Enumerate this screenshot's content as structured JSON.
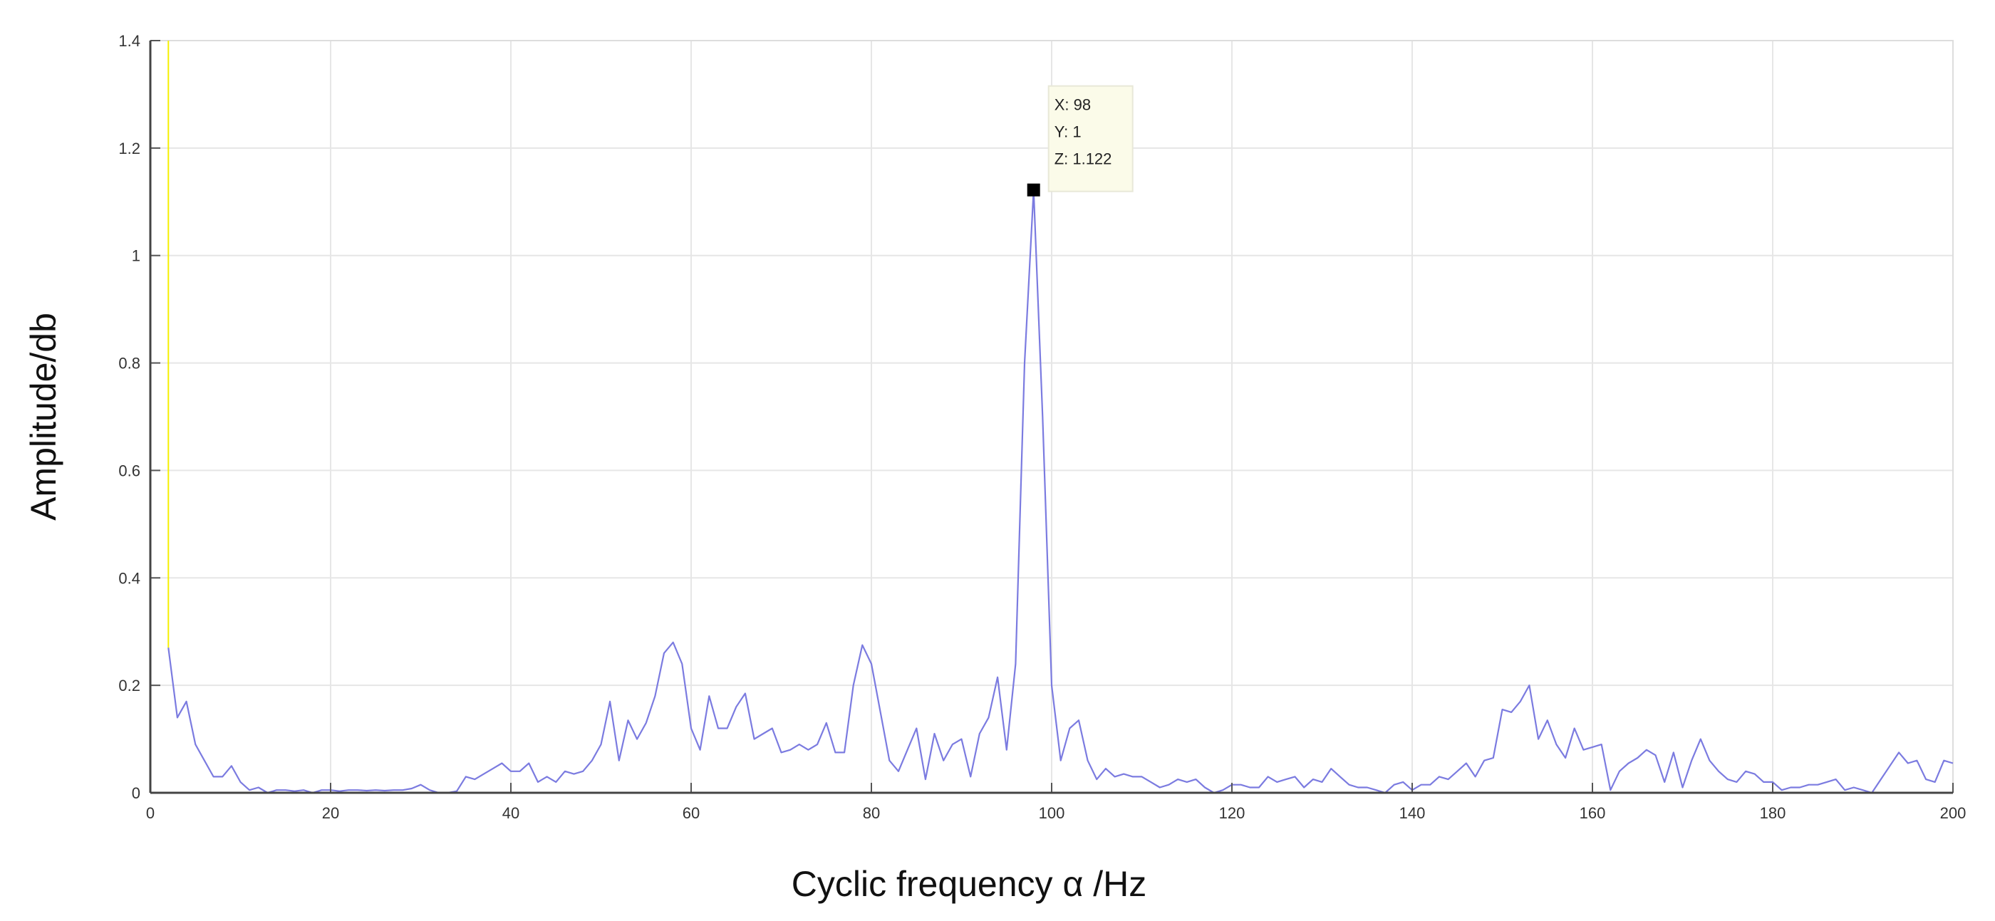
{
  "chart_data": {
    "type": "line",
    "title": "",
    "xlabel": "Cyclic frequency  α /Hz",
    "ylabel": "Amplitude/db",
    "xlim": [
      0,
      200
    ],
    "ylim": [
      0,
      1.4
    ],
    "xticks": [
      0,
      20,
      40,
      60,
      80,
      100,
      120,
      140,
      160,
      180,
      200
    ],
    "yticks": [
      0,
      0.2,
      0.4,
      0.6,
      0.8,
      1,
      1.2,
      1.4
    ],
    "xtick_labels": [
      "0",
      "20",
      "40",
      "60",
      "80",
      "100",
      "120",
      "140",
      "160",
      "180",
      "200"
    ],
    "ytick_labels": [
      "0",
      "0.2",
      "0.4",
      "0.6",
      "0.8",
      "1",
      "1.2",
      "1.4"
    ],
    "grid": true,
    "series": [
      {
        "color": "#7b7be0",
        "x": [
          2,
          3,
          4,
          5,
          6,
          7,
          8,
          9,
          10,
          11,
          12,
          13,
          14,
          15,
          16,
          17,
          18,
          19,
          20,
          21,
          22,
          23,
          24,
          25,
          26,
          27,
          28,
          29,
          30,
          31,
          32,
          33,
          34,
          35,
          36,
          37,
          38,
          39,
          40,
          41,
          42,
          43,
          44,
          45,
          46,
          47,
          48,
          49,
          50,
          51,
          52,
          53,
          54,
          55,
          56,
          57,
          58,
          59,
          60,
          61,
          62,
          63,
          64,
          65,
          66,
          67,
          68,
          69,
          70,
          71,
          72,
          73,
          74,
          75,
          76,
          77,
          78,
          79,
          80,
          81,
          82,
          83,
          84,
          85,
          86,
          87,
          88,
          89,
          90,
          91,
          92,
          93,
          94,
          95,
          96,
          97,
          98,
          99,
          100,
          101,
          102,
          103,
          104,
          105,
          106,
          107,
          108,
          109,
          110,
          111,
          112,
          113,
          114,
          115,
          116,
          117,
          118,
          119,
          120,
          121,
          122,
          123,
          124,
          125,
          126,
          127,
          128,
          129,
          130,
          131,
          132,
          133,
          134,
          135,
          136,
          137,
          138,
          139,
          140,
          141,
          142,
          143,
          144,
          145,
          146,
          147,
          148,
          149,
          150,
          151,
          152,
          153,
          154,
          155,
          156,
          157,
          158,
          159,
          160,
          161,
          162,
          163,
          164,
          165,
          166,
          167,
          168,
          169,
          170,
          171,
          172,
          173,
          174,
          175,
          176,
          177,
          178,
          179,
          180,
          181,
          182,
          183,
          184,
          185,
          186,
          187,
          188,
          189,
          190,
          191,
          192,
          193,
          194,
          195,
          196,
          197,
          198,
          199,
          200
        ],
        "y": [
          0.27,
          0.14,
          0.17,
          0.09,
          0.06,
          0.03,
          0.03,
          0.05,
          0.02,
          0.005,
          0.01,
          0,
          0.005,
          0.005,
          0.003,
          0.005,
          0,
          0.005,
          0.005,
          0.003,
          0.005,
          0.005,
          0.004,
          0.005,
          0.004,
          0.005,
          0.005,
          0.008,
          0.015,
          0.005,
          0,
          0,
          0.003,
          0.03,
          0.025,
          0.035,
          0.045,
          0.055,
          0.04,
          0.04,
          0.055,
          0.02,
          0.03,
          0.02,
          0.04,
          0.035,
          0.04,
          0.06,
          0.09,
          0.17,
          0.06,
          0.135,
          0.1,
          0.13,
          0.18,
          0.26,
          0.28,
          0.24,
          0.12,
          0.08,
          0.18,
          0.12,
          0.12,
          0.16,
          0.185,
          0.1,
          0.11,
          0.12,
          0.075,
          0.08,
          0.09,
          0.08,
          0.09,
          0.13,
          0.075,
          0.075,
          0.2,
          0.275,
          0.24,
          0.15,
          0.06,
          0.04,
          0.08,
          0.12,
          0.025,
          0.11,
          0.06,
          0.09,
          0.1,
          0.03,
          0.11,
          0.14,
          0.215,
          0.08,
          0.24,
          0.8,
          1.122,
          0.7,
          0.2,
          0.06,
          0.12,
          0.135,
          0.06,
          0.025,
          0.045,
          0.03,
          0.035,
          0.03,
          0.03,
          0.02,
          0.01,
          0.015,
          0.025,
          0.02,
          0.025,
          0.01,
          0,
          0.005,
          0.015,
          0.015,
          0.01,
          0.01,
          0.03,
          0.02,
          0.025,
          0.03,
          0.01,
          0.025,
          0.02,
          0.045,
          0.03,
          0.015,
          0.01,
          0.01,
          0.005,
          0,
          0.015,
          0.02,
          0.005,
          0.015,
          0.015,
          0.03,
          0.025,
          0.04,
          0.055,
          0.03,
          0.06,
          0.065,
          0.155,
          0.15,
          0.17,
          0.2,
          0.1,
          0.135,
          0.09,
          0.065,
          0.12,
          0.08,
          0.085,
          0.09,
          0.005,
          0.04,
          0.055,
          0.065,
          0.08,
          0.07,
          0.02,
          0.075,
          0.01,
          0.06,
          0.1,
          0.06,
          0.04,
          0.025,
          0.02,
          0.04,
          0.035,
          0.02,
          0.02,
          0.005,
          0.01,
          0.01,
          0.015,
          0.015,
          0.02,
          0.025,
          0.005,
          0.01,
          0.005,
          0,
          0.025,
          0.05,
          0.075,
          0.055,
          0.06,
          0.025,
          0.02,
          0.06,
          0.055
        ]
      }
    ],
    "marker_line": {
      "color": "#f5f000",
      "x": 2,
      "y_from": 0.27,
      "y_to": 1.4
    },
    "datatip": {
      "x": 98,
      "y": 1.122,
      "lines": [
        "X: 98",
        "Y: 1",
        "Z: 1.122"
      ],
      "background": "#fbfbe9"
    }
  }
}
